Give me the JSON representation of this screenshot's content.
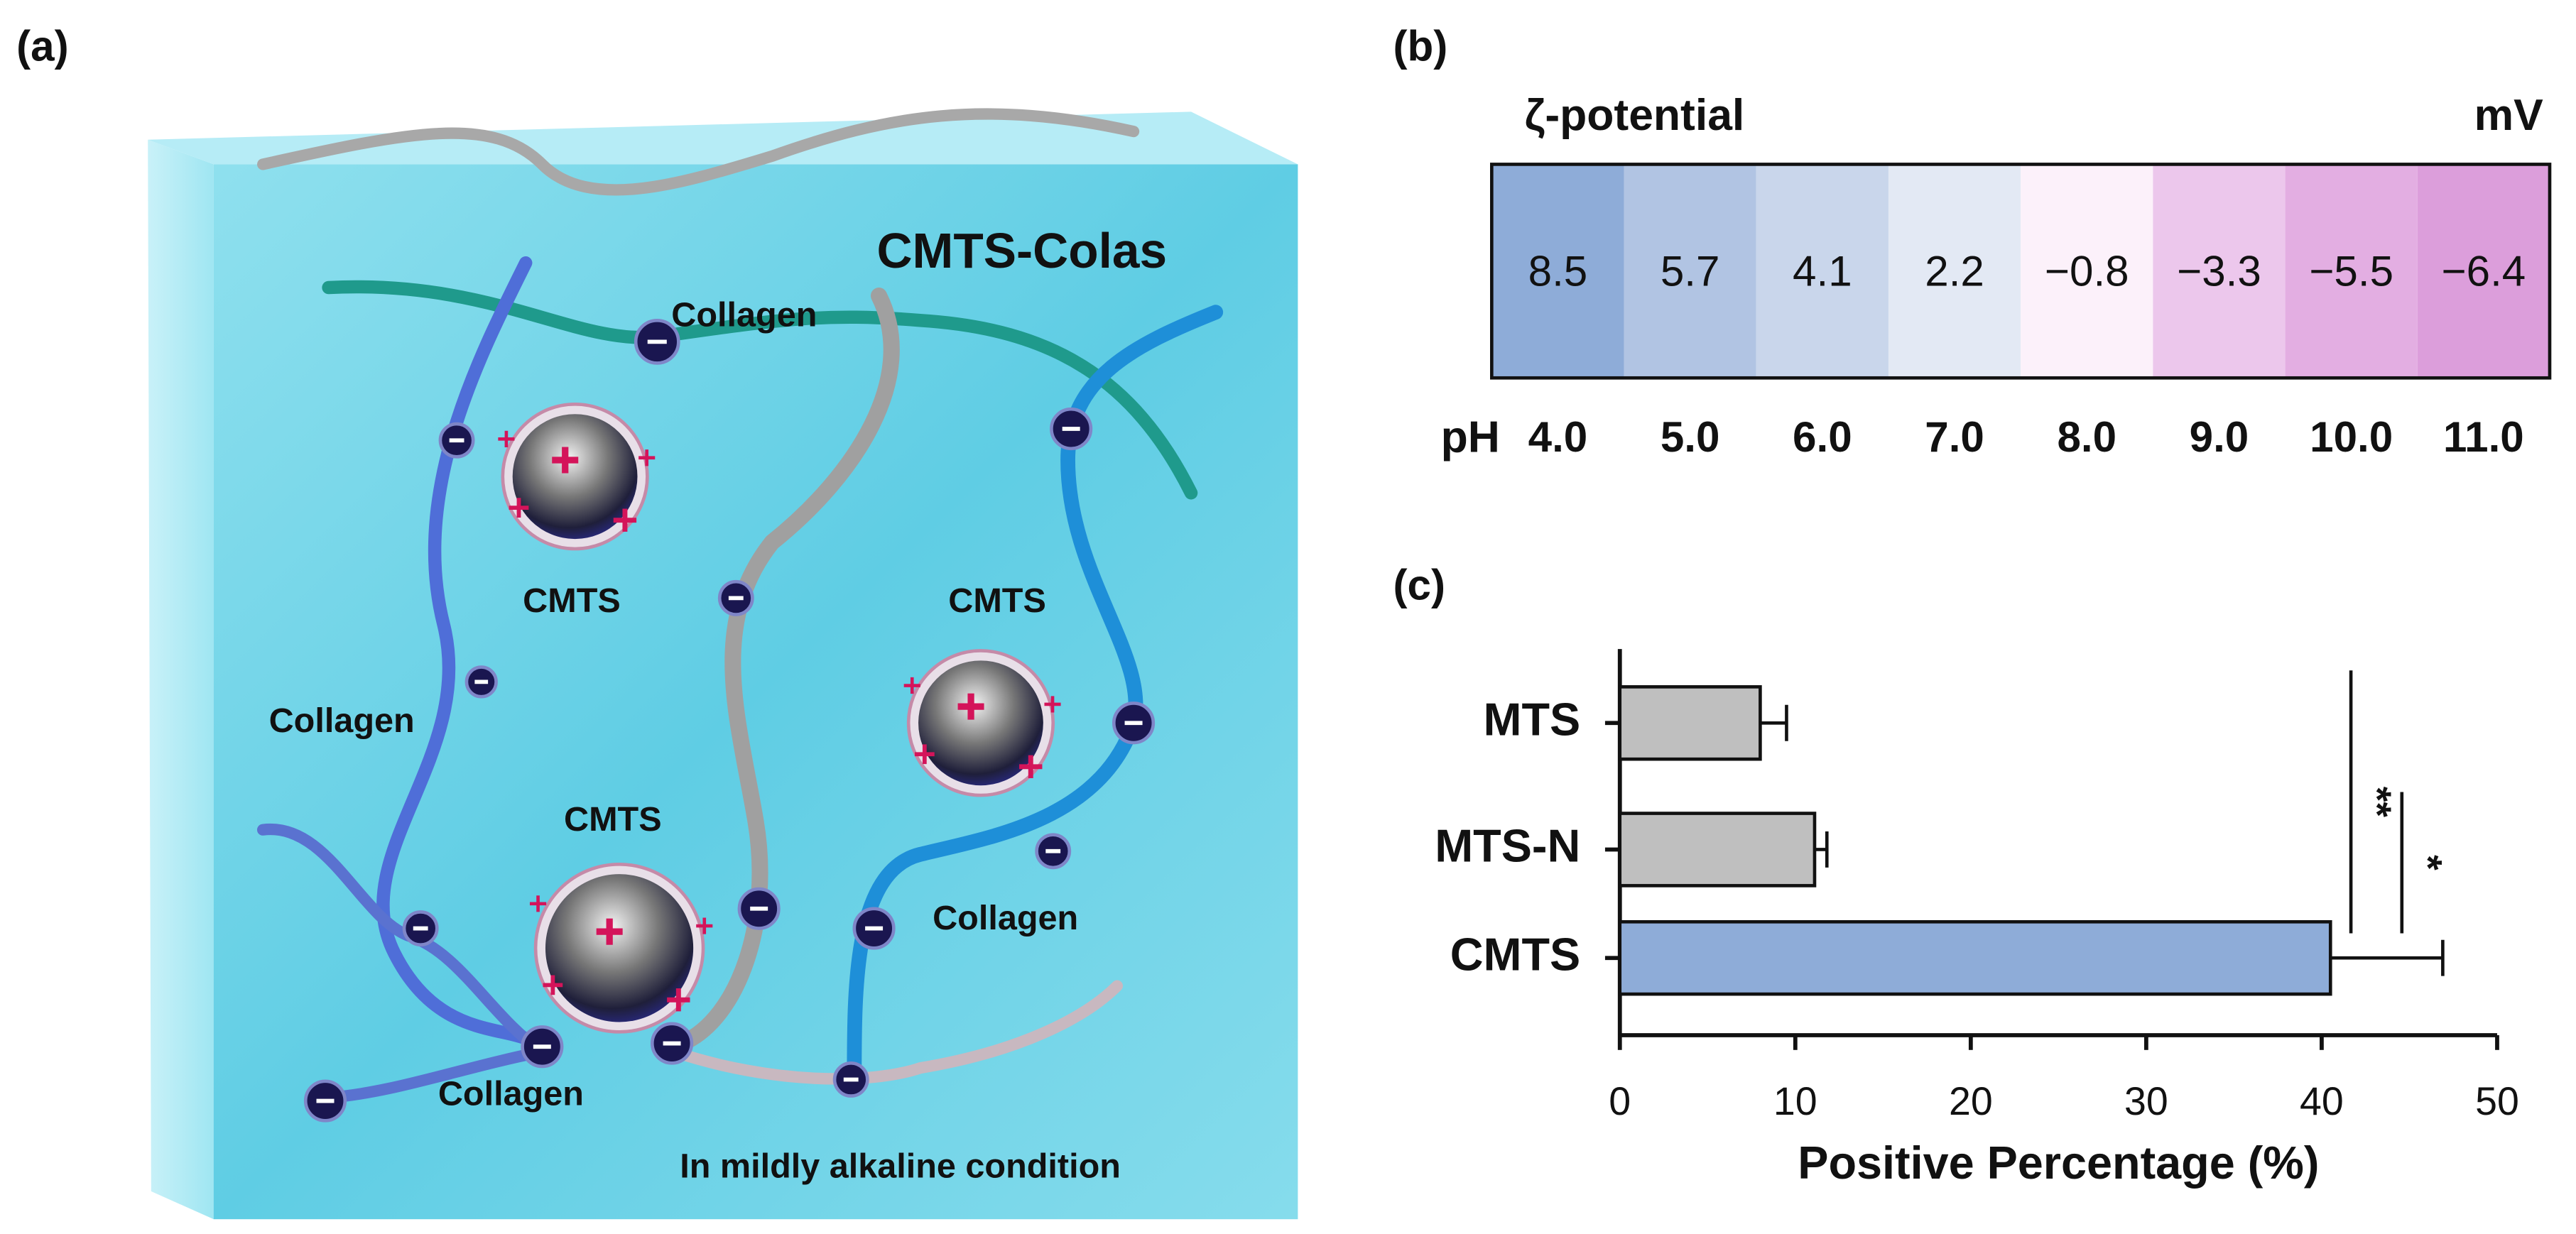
{
  "panel_labels": [
    "(a)",
    "(b)",
    "(c)"
  ],
  "diagram": {
    "title": "CMTS-Colas",
    "labels": [
      "Collagen",
      "CMTS",
      "CMTS",
      "Collagen",
      "CMTS",
      "Collagen",
      "Collagen"
    ],
    "caption": "In mildly alkaline condition"
  },
  "chart_data": [
    {
      "type": "heatmap",
      "title": "ζ-potential",
      "unit": "mV",
      "x_label": "pH",
      "categories": [
        "4.0",
        "5.0",
        "6.0",
        "7.0",
        "8.0",
        "9.0",
        "10.0",
        "11.0"
      ],
      "values": [
        8.5,
        5.7,
        4.1,
        2.2,
        -0.8,
        -3.3,
        -5.5,
        -6.4
      ],
      "value_labels": [
        "8.5",
        "5.7",
        "4.1",
        "2.2",
        "−0.8",
        "−3.3",
        "−5.5",
        "−6.4"
      ],
      "colors": [
        "#8eacd8",
        "#b1c4e3",
        "#c9d6eb",
        "#e3e9f4",
        "#fcf1fa",
        "#ecc7ec",
        "#e3aee2",
        "#dc9edb"
      ]
    },
    {
      "type": "bar",
      "orientation": "horizontal",
      "categories": [
        "MTS",
        "MTS-N",
        "CMTS"
      ],
      "values": [
        8.0,
        11.1,
        40.5
      ],
      "errors": [
        1.5,
        0.7,
        6.4
      ],
      "colors": [
        "#bfbfbf",
        "#bfbfbf",
        "#8eacd8"
      ],
      "x_label": "Positive Percentage (%)",
      "xlim": [
        0,
        50
      ],
      "xticks": [
        0,
        10,
        20,
        30,
        40,
        50
      ],
      "significance": [
        {
          "label": "**",
          "from": "MTS",
          "to": "CMTS"
        },
        {
          "label": "*",
          "from": "MTS-N",
          "to": "CMTS"
        }
      ]
    }
  ]
}
